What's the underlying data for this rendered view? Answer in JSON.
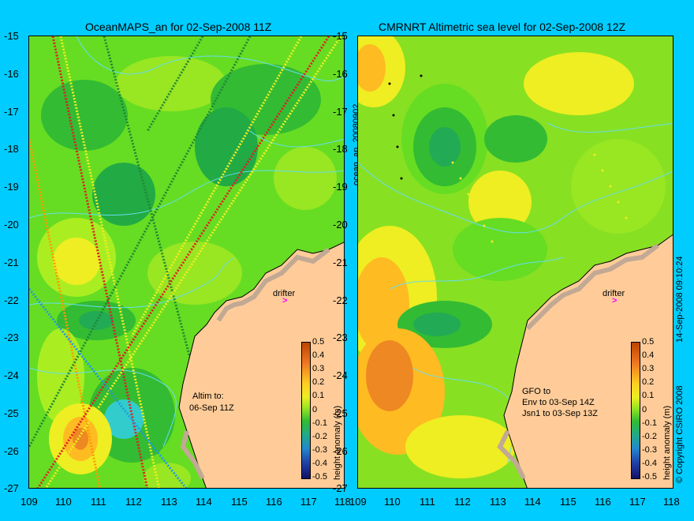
{
  "maps": [
    {
      "title": "OceanMAPS_an for 02-Sep-2008 11Z",
      "side_label": "ocean_an_20080902",
      "drifter_label": "drifter",
      "note_lines": [
        "Altim to:",
        "06-Sep 11Z"
      ],
      "legend_title": "height anomaly (m)"
    },
    {
      "title": "CMRNRT Altimetric sea level  for 02-Sep-2008 12Z",
      "side_label": "14-Sep-2008 09:10:24",
      "drifter_label": "drifter",
      "note_lines": [
        "GFO to",
        "Env to 03-Sep 14Z",
        "Jsn1 to 03-Sep 13Z"
      ],
      "legend_title": "height anomaly (m)"
    }
  ],
  "copyright": "© Copyright CSIRO 2008",
  "lat_ticks": [
    "-15",
    "-16",
    "-17",
    "-18",
    "-19",
    "-20",
    "-21",
    "-22",
    "-23",
    "-24",
    "-25",
    "-26",
    "-27"
  ],
  "lon_ticks": [
    "109",
    "110",
    "111",
    "112",
    "113",
    "114",
    "115",
    "116",
    "117",
    "118"
  ],
  "legend_ticks": [
    "0.5",
    "0.4",
    "0.3",
    "0.2",
    "0.1",
    "0",
    "-0.1",
    "-0.2",
    "-0.3",
    "-0.4",
    "-0.5"
  ],
  "colors": {
    "background": "#00ccff",
    "land": "#ffcc99",
    "coast_rock": "#c2a994",
    "drifter": "#ff00ff",
    "contour": "#66ddee"
  }
}
